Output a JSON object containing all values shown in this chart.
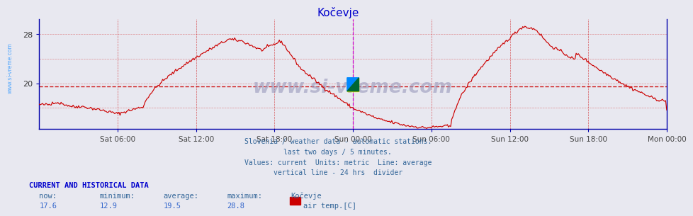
{
  "title": "Kočevje",
  "title_color": "#0000cc",
  "bg_color": "#e8e8f0",
  "plot_bg_color": "#e8e8f0",
  "line_color": "#cc0000",
  "avg_line_color": "#cc0000",
  "avg_value": 19.5,
  "ymin": 12.5,
  "ymax": 30.5,
  "yticks": [
    20,
    28
  ],
  "grid_vcolor": "#cc0000",
  "divider_color": "#cc00cc",
  "axis_color": "#0000aa",
  "watermark": "www.si-vreme.com",
  "watermark_color": "#9999bb",
  "subtitle_lines": [
    "Slovenia / weather data - automatic stations.",
    "last two days / 5 minutes.",
    "Values: current  Units: metric  Line: average",
    "vertical line - 24 hrs  divider"
  ],
  "subtitle_color": "#336699",
  "footer_label": "CURRENT AND HISTORICAL DATA",
  "footer_color": "#0000cc",
  "stats_labels": [
    "now:",
    "minimum:",
    "average:",
    "maximum:"
  ],
  "stats_label_color": "#336699",
  "stats_values": [
    "17.6",
    "12.9",
    "19.5",
    "28.8"
  ],
  "stats_value_color": "#3366cc",
  "legend_station": "Kočevje",
  "legend_label": "air temp.[C]",
  "legend_color": "#cc0000",
  "x_tick_labels": [
    "Sat 06:00",
    "Sat 12:00",
    "Sat 18:00",
    "Sun 00:00",
    "Sun 06:00",
    "Sun 12:00",
    "Sun 18:00",
    "Mon 00:00"
  ],
  "x_tick_positions": [
    6,
    12,
    18,
    24,
    30,
    36,
    42,
    48
  ],
  "sidebar_text": "www.si-vreme.com",
  "sidebar_color": "#3399ff",
  "n_points": 576
}
